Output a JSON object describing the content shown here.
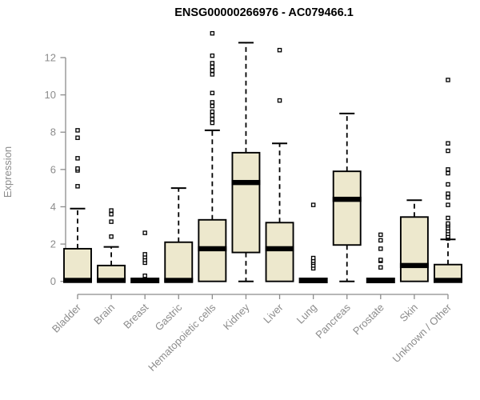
{
  "page": {
    "background": "#ffffff"
  },
  "chart_data": {
    "type": "boxplot",
    "title": "ENSG00000266976 - AC079466.1",
    "xlabel": "",
    "ylabel": "Expression",
    "ylim": [
      0,
      13.4
    ],
    "yticks": [
      0,
      2,
      4,
      6,
      8,
      10,
      12
    ],
    "grid": false,
    "legend": null,
    "box_fill": "#EDE8CD",
    "box_stroke": "#000000",
    "median_color": "#000000",
    "axis_color": "#8c8c8c",
    "label_color": "#8c8c8c",
    "title_color": "#000000",
    "categories": [
      "Bladder",
      "Brain",
      "Breast",
      "Gastric",
      "Hematopoietic cells",
      "Kidney",
      "Liver",
      "Lung",
      "Pancreas",
      "Prostate",
      "Skin",
      "Unknown / Other"
    ],
    "series": [
      {
        "name": "Bladder",
        "q1": 0,
        "median": 0.05,
        "q3": 1.75,
        "whisker_low": null,
        "whisker_high": 3.9,
        "collapsed": false,
        "outliers": [
          5.1,
          5.95,
          6.05,
          6.6,
          7.7,
          8.1
        ]
      },
      {
        "name": "Brain",
        "q1": 0,
        "median": 0.05,
        "q3": 0.85,
        "whisker_low": null,
        "whisker_high": 1.85,
        "collapsed": false,
        "outliers": [
          2.4,
          3.2,
          3.6,
          3.8
        ]
      },
      {
        "name": "Breast",
        "q1": 0,
        "median": 0.05,
        "q3": 0.05,
        "whisker_low": null,
        "whisker_high": 0.05,
        "collapsed": true,
        "outliers": [
          0.3,
          1.0,
          1.15,
          1.3,
          1.45,
          2.6
        ]
      },
      {
        "name": "Gastric",
        "q1": 0,
        "median": 0.05,
        "q3": 2.1,
        "whisker_low": null,
        "whisker_high": 5.0,
        "collapsed": false,
        "outliers": []
      },
      {
        "name": "Hematopoietic cells",
        "q1": 0,
        "median": 1.75,
        "q3": 3.3,
        "whisker_low": null,
        "whisker_high": 8.1,
        "collapsed": false,
        "outliers": [
          8.5,
          8.7,
          8.9,
          9.1,
          9.4,
          9.6,
          10.1,
          11.1,
          11.3,
          11.5,
          11.7,
          12.1,
          13.3
        ]
      },
      {
        "name": "Kidney",
        "q1": 1.55,
        "median": 5.3,
        "q3": 6.9,
        "whisker_low": 0,
        "whisker_high": 12.8,
        "collapsed": false,
        "outliers": []
      },
      {
        "name": "Liver",
        "q1": 0,
        "median": 1.75,
        "q3": 3.15,
        "whisker_low": null,
        "whisker_high": 7.4,
        "collapsed": false,
        "outliers": [
          9.7,
          12.4
        ]
      },
      {
        "name": "Lung",
        "q1": 0,
        "median": 0.05,
        "q3": 0.05,
        "whisker_low": null,
        "whisker_high": 0.05,
        "collapsed": true,
        "outliers": [
          0.7,
          0.85,
          1.0,
          1.1,
          1.25,
          4.1
        ]
      },
      {
        "name": "Pancreas",
        "q1": 1.95,
        "median": 4.4,
        "q3": 5.9,
        "whisker_low": 0,
        "whisker_high": 9.0,
        "collapsed": false,
        "outliers": []
      },
      {
        "name": "Prostate",
        "q1": 0,
        "median": 0.05,
        "q3": 0.05,
        "whisker_low": null,
        "whisker_high": 0.05,
        "collapsed": true,
        "outliers": [
          0.75,
          1.1,
          1.15,
          1.75,
          2.2,
          2.5
        ]
      },
      {
        "name": "Skin",
        "q1": 0,
        "median": 0.85,
        "q3": 3.45,
        "whisker_low": null,
        "whisker_high": 4.35,
        "collapsed": false,
        "outliers": []
      },
      {
        "name": "Unknown / Other",
        "q1": 0,
        "median": 0.05,
        "q3": 0.9,
        "whisker_low": null,
        "whisker_high": 2.25,
        "collapsed": false,
        "outliers": [
          2.3,
          2.4,
          2.55,
          2.7,
          2.85,
          3.0,
          3.1,
          3.4,
          4.1,
          4.5,
          4.7,
          5.2,
          5.8,
          6.0,
          7.0,
          7.4,
          10.8
        ]
      }
    ]
  }
}
